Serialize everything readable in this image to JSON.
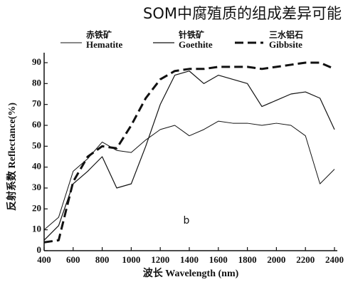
{
  "chart_data": {
    "type": "line",
    "title": "SOM中腐殖质的组成差异可能",
    "xlabel": "波长 Wavelength (nm)",
    "ylabel": "反射系数  Reflectance(%)",
    "annotation": "b",
    "x": [
      400,
      500,
      600,
      700,
      800,
      900,
      1000,
      1100,
      1200,
      1300,
      1400,
      1500,
      1600,
      1700,
      1800,
      1900,
      2000,
      2100,
      2200,
      2300,
      2400
    ],
    "series": [
      {
        "name": "Hematite",
        "name_zh": "赤铁矿",
        "color": "#111111",
        "style": "thin",
        "values": [
          10,
          16,
          38,
          44,
          52,
          48,
          47,
          53,
          58,
          60,
          55,
          58,
          62,
          61,
          61,
          60,
          61,
          60,
          55,
          32,
          39
        ]
      },
      {
        "name": "Goethite",
        "name_zh": "针铁矿",
        "color": "#111111",
        "style": "solid",
        "values": [
          5,
          12,
          32,
          38,
          45,
          30,
          32,
          50,
          70,
          84,
          86,
          80,
          84,
          82,
          80,
          69,
          72,
          75,
          76,
          73,
          58
        ]
      },
      {
        "name": "Gibbsite",
        "name_zh": "三水铝石",
        "color": "#111111",
        "style": "dashed",
        "values": [
          4,
          5,
          33,
          45,
          50,
          49,
          60,
          73,
          82,
          86,
          87,
          87,
          88,
          88,
          88,
          87,
          88,
          89,
          90,
          90,
          87
        ]
      }
    ],
    "xlim": [
      400,
      2400
    ],
    "xticks": [
      400,
      600,
      800,
      1000,
      1200,
      1400,
      1600,
      1800,
      2000,
      2200,
      2400
    ],
    "ylim": [
      0,
      90
    ],
    "yticks": [
      0,
      10,
      20,
      30,
      40,
      50,
      60,
      70,
      80,
      90
    ]
  }
}
